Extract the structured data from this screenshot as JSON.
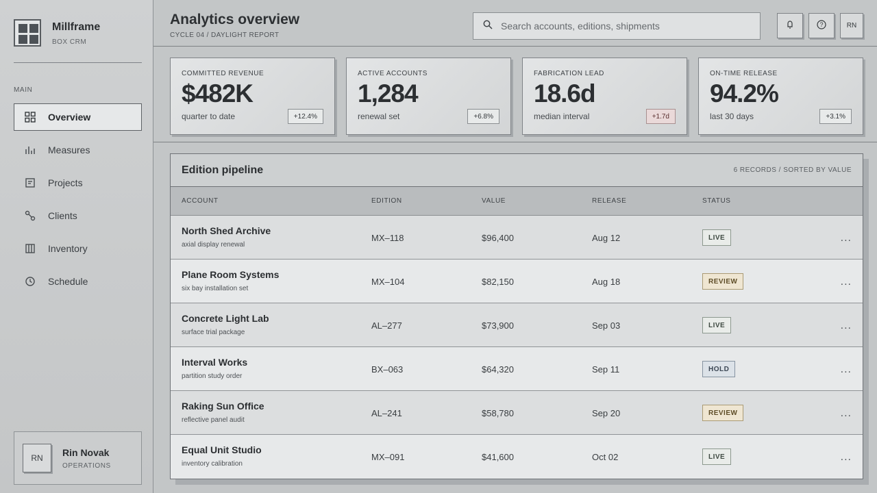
{
  "brand": {
    "name": "Millframe",
    "sub": "BOX CRM"
  },
  "sidebar": {
    "section": "MAIN",
    "items": [
      {
        "label": "Overview",
        "icon": "grid-icon",
        "active": true
      },
      {
        "label": "Measures",
        "icon": "bars-icon"
      },
      {
        "label": "Projects",
        "icon": "document-icon"
      },
      {
        "label": "Clients",
        "icon": "link-icon"
      },
      {
        "label": "Inventory",
        "icon": "columns-icon"
      },
      {
        "label": "Schedule",
        "icon": "clock-icon"
      }
    ]
  },
  "user": {
    "initials": "RN",
    "name": "Rin Novak",
    "role": "OPERATIONS"
  },
  "header": {
    "title": "Analytics overview",
    "subtitle": "CYCLE 04 / DAYLIGHT REPORT",
    "search_placeholder": "Search accounts, editions, shipments",
    "avatar": "RN"
  },
  "kpis": [
    {
      "label": "COMMITTED REVENUE",
      "value": "$482K",
      "note": "quarter to date",
      "delta": "+12.4%"
    },
    {
      "label": "ACTIVE ACCOUNTS",
      "value": "1,284",
      "note": "renewal set",
      "delta": "+6.8%"
    },
    {
      "label": "FABRICATION LEAD",
      "value": "18.6d",
      "note": "median interval",
      "delta": "+1.7d"
    },
    {
      "label": "ON-TIME RELEASE",
      "value": "94.2%",
      "note": "last 30 days",
      "delta": "+3.1%"
    }
  ],
  "pipeline": {
    "title": "Edition pipeline",
    "meta": "6 RECORDS / SORTED BY VALUE",
    "columns": [
      "ACCOUNT",
      "EDITION",
      "VALUE",
      "RELEASE",
      "STATUS"
    ],
    "rows": [
      {
        "name": "North Shed Archive",
        "desc": "axial display renewal",
        "edition": "MX–118",
        "value": "$96,400",
        "release": "Aug 12",
        "status": "LIVE"
      },
      {
        "name": "Plane Room Systems",
        "desc": "six bay installation set",
        "edition": "MX–104",
        "value": "$82,150",
        "release": "Aug 18",
        "status": "REVIEW"
      },
      {
        "name": "Concrete Light Lab",
        "desc": "surface trial package",
        "edition": "AL–277",
        "value": "$73,900",
        "release": "Sep 03",
        "status": "LIVE"
      },
      {
        "name": "Interval Works",
        "desc": "partition study order",
        "edition": "BX–063",
        "value": "$64,320",
        "release": "Sep 11",
        "status": "HOLD"
      },
      {
        "name": "Raking Sun Office",
        "desc": "reflective panel audit",
        "edition": "AL–241",
        "value": "$58,780",
        "release": "Sep 20",
        "status": "REVIEW"
      },
      {
        "name": "Equal Unit Studio",
        "desc": "inventory calibration",
        "edition": "MX–091",
        "value": "$41,600",
        "release": "Oct 02",
        "status": "LIVE"
      }
    ],
    "more_glyph": "..."
  }
}
